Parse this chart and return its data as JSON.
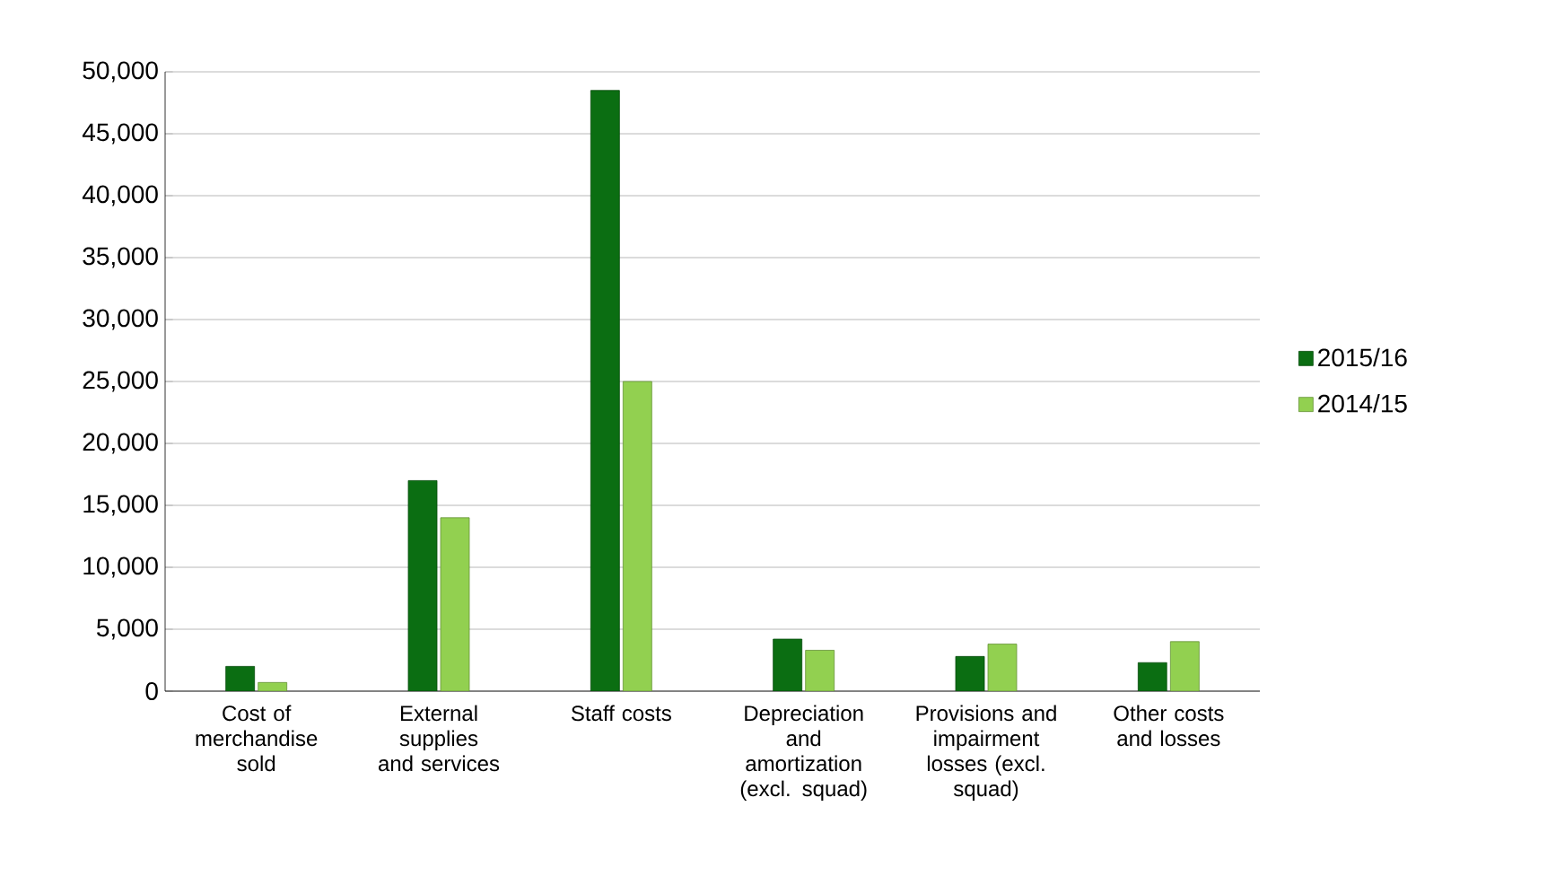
{
  "chart_data": {
    "type": "bar",
    "categories": [
      "Cost of merchandise sold",
      "External supplies and services",
      "Staff costs",
      "Depreciation and amortization (excl. squad)",
      "Provisions and impairment losses (excl. squad)",
      "Other costs and losses"
    ],
    "series": [
      {
        "name": "2015/16",
        "color": "#0b6e12",
        "values": [
          2000,
          17000,
          48500,
          4200,
          2800,
          2300
        ]
      },
      {
        "name": "2014/15",
        "color": "#92d050",
        "values": [
          700,
          14000,
          25000,
          3300,
          3800,
          4000
        ]
      }
    ],
    "ylim": [
      0,
      50000
    ],
    "yticks": [
      {
        "value": 0,
        "label": "0"
      },
      {
        "value": 5000,
        "label": "5,000"
      },
      {
        "value": 10000,
        "label": "10,000"
      },
      {
        "value": 15000,
        "label": "15,000"
      },
      {
        "value": 20000,
        "label": "20,000"
      },
      {
        "value": 25000,
        "label": "25,000"
      },
      {
        "value": 30000,
        "label": "30,000"
      },
      {
        "value": 35000,
        "label": "35,000"
      },
      {
        "value": 40000,
        "label": "40,000"
      },
      {
        "value": 45000,
        "label": "45,000"
      },
      {
        "value": 50000,
        "label": "50,000"
      }
    ],
    "grid": "y",
    "legend": "right"
  }
}
